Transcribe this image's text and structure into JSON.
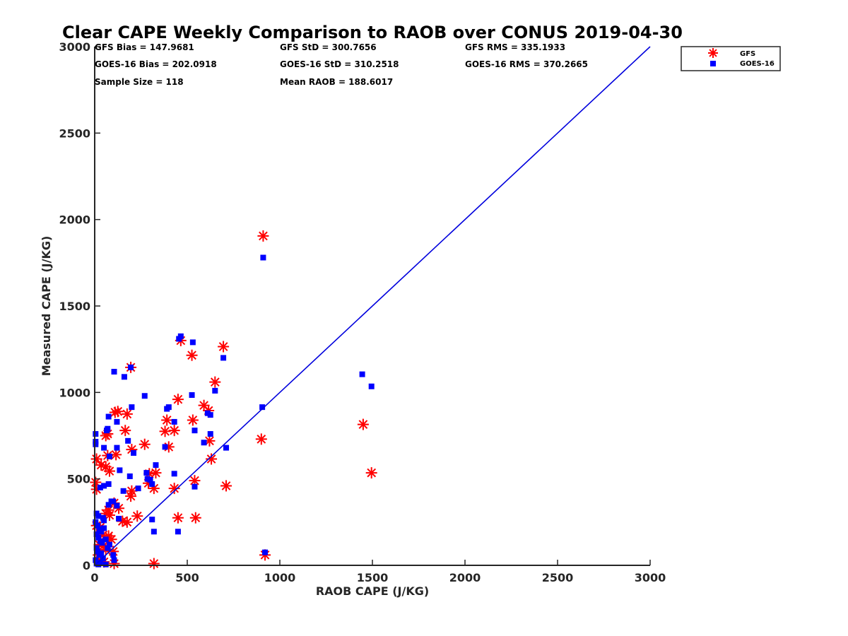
{
  "chart_data": {
    "type": "scatter",
    "title": "Clear CAPE Weekly Comparison to RAOB over CONUS 2019-04-30",
    "xlabel": "RAOB CAPE (J/KG)",
    "ylabel": "Measured CAPE (J/KG)",
    "xlim": [
      0,
      3000
    ],
    "ylim": [
      0,
      3000
    ],
    "xticks": [
      "0",
      "500",
      "1000",
      "1500",
      "2000",
      "2500",
      "3000"
    ],
    "yticks": [
      "0",
      "500",
      "1000",
      "1500",
      "2000",
      "2500",
      "3000"
    ],
    "grid": false,
    "legend_position": "top-right",
    "stats": [
      [
        "GFS Bias = 147.9681",
        "GFS StD = 300.7656",
        "GFS RMS = 335.1933"
      ],
      [
        "GOES-16 Bias = 202.0918",
        "GOES-16 StD = 310.2518",
        "GOES-16 RMS = 370.2665"
      ],
      [
        "Sample Size = 118",
        "Mean RAOB = 188.6017",
        ""
      ]
    ],
    "reference_line": {
      "name": "1:1 line",
      "x": [
        0,
        3000
      ],
      "y": [
        0,
        3000
      ],
      "color": "#0000dd"
    },
    "series": [
      {
        "name": "GFS",
        "marker": "asterisk",
        "color": "#ff0000",
        "points": [
          [
            910,
            1905
          ],
          [
            465,
            1300
          ],
          [
            525,
            1215
          ],
          [
            695,
            1265
          ],
          [
            195,
            1145
          ],
          [
            650,
            1060
          ],
          [
            450,
            960
          ],
          [
            590,
            925
          ],
          [
            615,
            895
          ],
          [
            110,
            885
          ],
          [
            125,
            890
          ],
          [
            175,
            875
          ],
          [
            165,
            780
          ],
          [
            390,
            840
          ],
          [
            430,
            780
          ],
          [
            380,
            775
          ],
          [
            70,
            760
          ],
          [
            60,
            750
          ],
          [
            530,
            840
          ],
          [
            200,
            670
          ],
          [
            115,
            640
          ],
          [
            70,
            635
          ],
          [
            400,
            685
          ],
          [
            270,
            700
          ],
          [
            620,
            720
          ],
          [
            900,
            730
          ],
          [
            1450,
            815
          ],
          [
            1495,
            535
          ],
          [
            10,
            615
          ],
          [
            35,
            580
          ],
          [
            60,
            570
          ],
          [
            80,
            545
          ],
          [
            330,
            535
          ],
          [
            295,
            530
          ],
          [
            5,
            480
          ],
          [
            10,
            440
          ],
          [
            290,
            475
          ],
          [
            320,
            445
          ],
          [
            430,
            445
          ],
          [
            540,
            490
          ],
          [
            630,
            615
          ],
          [
            710,
            460
          ],
          [
            195,
            400
          ],
          [
            200,
            430
          ],
          [
            105,
            360
          ],
          [
            60,
            300
          ],
          [
            75,
            320
          ],
          [
            80,
            290
          ],
          [
            130,
            330
          ],
          [
            150,
            255
          ],
          [
            175,
            250
          ],
          [
            230,
            285
          ],
          [
            450,
            275
          ],
          [
            545,
            275
          ],
          [
            10,
            230
          ],
          [
            30,
            220
          ],
          [
            45,
            175
          ],
          [
            75,
            170
          ],
          [
            90,
            150
          ],
          [
            25,
            120
          ],
          [
            45,
            110
          ],
          [
            60,
            90
          ],
          [
            100,
            80
          ],
          [
            20,
            60
          ],
          [
            30,
            30
          ],
          [
            50,
            20
          ],
          [
            105,
            10
          ],
          [
            320,
            10
          ],
          [
            920,
            60
          ]
        ]
      },
      {
        "name": "GOES-16",
        "marker": "square",
        "color": "#0000ff",
        "points": [
          [
            910,
            1780
          ],
          [
            455,
            1310
          ],
          [
            465,
            1325
          ],
          [
            530,
            1290
          ],
          [
            695,
            1200
          ],
          [
            195,
            1145
          ],
          [
            105,
            1120
          ],
          [
            160,
            1090
          ],
          [
            270,
            980
          ],
          [
            525,
            985
          ],
          [
            650,
            1010
          ],
          [
            400,
            915
          ],
          [
            390,
            905
          ],
          [
            200,
            915
          ],
          [
            610,
            880
          ],
          [
            625,
            870
          ],
          [
            430,
            830
          ],
          [
            120,
            830
          ],
          [
            75,
            860
          ],
          [
            65,
            780
          ],
          [
            70,
            790
          ],
          [
            540,
            780
          ],
          [
            625,
            760
          ],
          [
            180,
            720
          ],
          [
            590,
            710
          ],
          [
            710,
            680
          ],
          [
            5,
            760
          ],
          [
            5,
            700
          ],
          [
            5,
            715
          ],
          [
            50,
            680
          ],
          [
            120,
            680
          ],
          [
            380,
            685
          ],
          [
            210,
            650
          ],
          [
            80,
            630
          ],
          [
            905,
            915
          ],
          [
            1445,
            1105
          ],
          [
            1495,
            1035
          ],
          [
            330,
            580
          ],
          [
            280,
            535
          ],
          [
            430,
            530
          ],
          [
            135,
            550
          ],
          [
            300,
            495
          ],
          [
            190,
            515
          ],
          [
            285,
            500
          ],
          [
            310,
            470
          ],
          [
            540,
            455
          ],
          [
            50,
            460
          ],
          [
            30,
            450
          ],
          [
            75,
            470
          ],
          [
            155,
            430
          ],
          [
            235,
            445
          ],
          [
            120,
            345
          ],
          [
            90,
            370
          ],
          [
            100,
            370
          ],
          [
            75,
            350
          ],
          [
            310,
            265
          ],
          [
            320,
            195
          ],
          [
            450,
            195
          ],
          [
            10,
            300
          ],
          [
            20,
            285
          ],
          [
            45,
            275
          ],
          [
            50,
            260
          ],
          [
            130,
            270
          ],
          [
            5,
            250
          ],
          [
            15,
            230
          ],
          [
            25,
            210
          ],
          [
            35,
            195
          ],
          [
            50,
            215
          ],
          [
            10,
            180
          ],
          [
            20,
            160
          ],
          [
            30,
            140
          ],
          [
            40,
            130
          ],
          [
            60,
            150
          ],
          [
            70,
            100
          ],
          [
            80,
            120
          ],
          [
            10,
            100
          ],
          [
            15,
            80
          ],
          [
            25,
            60
          ],
          [
            35,
            70
          ],
          [
            45,
            40
          ],
          [
            5,
            30
          ],
          [
            10,
            10
          ],
          [
            20,
            5
          ],
          [
            30,
            15
          ],
          [
            100,
            60
          ],
          [
            105,
            30
          ],
          [
            920,
            75
          ],
          [
            60,
            5
          ]
        ]
      }
    ]
  },
  "legend": {
    "items": [
      {
        "label": "GFS",
        "color": "#ff0000",
        "marker": "asterisk"
      },
      {
        "label": "GOES-16",
        "color": "#0000ff",
        "marker": "square"
      }
    ]
  }
}
